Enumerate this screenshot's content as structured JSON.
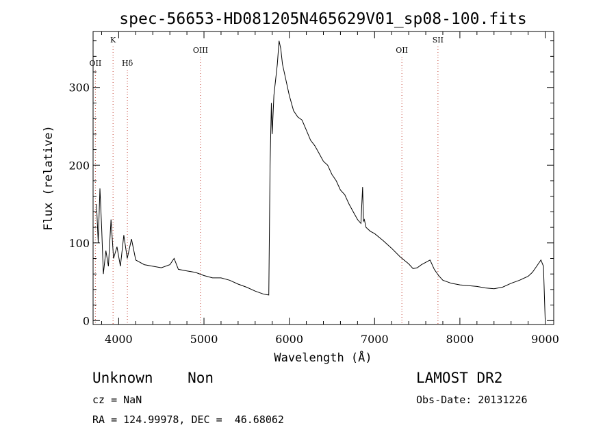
{
  "chart_data": {
    "type": "line",
    "title": "spec-56653-HD081205N465629V01_sp08-100.fits",
    "xlabel": "Wavelength (Å)",
    "ylabel": "Flux (relative)",
    "xlim": [
      3700,
      9100
    ],
    "ylim": [
      -5,
      372
    ],
    "x_ticks": [
      4000,
      5000,
      6000,
      7000,
      8000,
      9000
    ],
    "y_ticks": [
      0,
      100,
      200,
      300
    ],
    "grid": false,
    "line_color": "#000000",
    "marker_color": "#c0392b",
    "line_markers": [
      {
        "label": "OII",
        "x": 3727,
        "label_row": "low"
      },
      {
        "label": "K",
        "x": 3934,
        "label_row": "high"
      },
      {
        "label": "Hδ",
        "x": 4102,
        "label_row": "low"
      },
      {
        "label": "OIII",
        "x": 4959,
        "label_row": "mid"
      },
      {
        "label": "OII",
        "x": 7320,
        "label_row": "mid"
      },
      {
        "label": "SII",
        "x": 7743,
        "label_row": "high"
      }
    ],
    "series": [
      {
        "x": [
          3740,
          3760,
          3780,
          3800,
          3820,
          3850,
          3880,
          3910,
          3940,
          3980,
          4020,
          4060,
          4100,
          4150,
          4200,
          4300,
          4400,
          4500,
          4600,
          4650,
          4700,
          4800,
          4900,
          5000,
          5100,
          5200,
          5300,
          5400,
          5500,
          5600,
          5700,
          5760,
          5775,
          5790,
          5800,
          5820,
          5840,
          5860,
          5880,
          5900,
          5920,
          5950,
          6000,
          6050,
          6100,
          6150,
          6200,
          6250,
          6300,
          6350,
          6400,
          6450,
          6500,
          6550,
          6600,
          6650,
          6700,
          6750,
          6800,
          6840,
          6860,
          6870,
          6880,
          6900,
          6950,
          7000,
          7100,
          7200,
          7300,
          7400,
          7450,
          7500,
          7550,
          7600,
          7650,
          7700,
          7750,
          7800,
          7900,
          8000,
          8100,
          8200,
          8300,
          8400,
          8500,
          8600,
          8700,
          8800,
          8850,
          8900,
          8950,
          8980,
          9000
        ],
        "y": [
          150,
          100,
          170,
          120,
          60,
          90,
          70,
          130,
          80,
          95,
          70,
          110,
          80,
          105,
          78,
          72,
          70,
          68,
          72,
          80,
          66,
          64,
          62,
          58,
          55,
          55,
          52,
          47,
          43,
          38,
          34,
          33,
          200,
          280,
          240,
          290,
          310,
          330,
          360,
          350,
          330,
          315,
          290,
          270,
          262,
          258,
          245,
          232,
          225,
          215,
          205,
          200,
          188,
          180,
          168,
          162,
          150,
          140,
          130,
          125,
          172,
          128,
          130,
          120,
          115,
          112,
          103,
          93,
          82,
          73,
          67,
          68,
          72,
          75,
          78,
          66,
          58,
          52,
          48,
          46,
          45,
          44,
          42,
          41,
          43,
          48,
          52,
          57,
          62,
          70,
          78,
          70,
          2
        ]
      }
    ]
  },
  "footer": {
    "object_class": "Unknown    Non",
    "cz": "cz = NaN",
    "coords": "RA = 124.99978, DEC =  46.68062",
    "survey": "LAMOST DR2",
    "obs_date": "Obs-Date: 20131226"
  }
}
